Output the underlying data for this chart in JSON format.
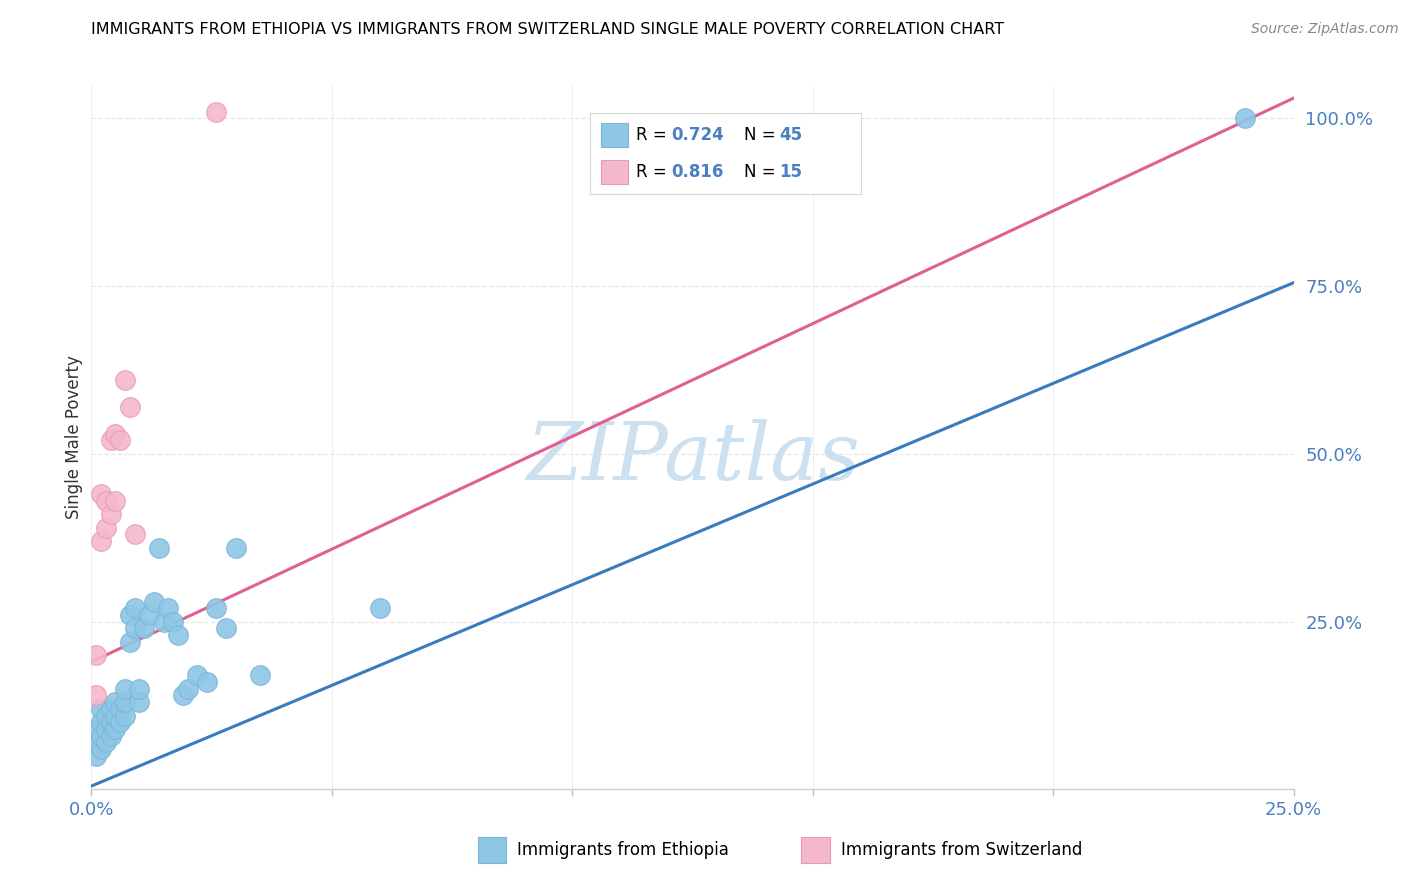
{
  "title": "IMMIGRANTS FROM ETHIOPIA VS IMMIGRANTS FROM SWITZERLAND SINGLE MALE POVERTY CORRELATION CHART",
  "source": "Source: ZipAtlas.com",
  "ylabel": "Single Male Poverty",
  "right_ytick_labels": [
    "100.0%",
    "75.0%",
    "50.0%",
    "25.0%"
  ],
  "right_ytick_positions": [
    1.0,
    0.75,
    0.5,
    0.25
  ],
  "xmin": 0.0,
  "xmax": 0.25,
  "ymin": 0.0,
  "ymax": 1.05,
  "ethiopia_color": "#8ec6e6",
  "ethiopia_edge_color": "#7ab5d8",
  "switzerland_color": "#f4b8cc",
  "switzerland_edge_color": "#e89ab5",
  "ethiopia_line_color": "#3a7bbf",
  "switzerland_line_color": "#e06090",
  "legend_r_ethiopia": "R = 0.724",
  "legend_n_ethiopia": "N = 45",
  "legend_r_switzerland": "R = 0.816",
  "legend_n_switzerland": "N = 15",
  "legend_label_ethiopia": "Immigrants from Ethiopia",
  "legend_label_switzerland": "Immigrants from Switzerland",
  "watermark": "ZIPatlas",
  "watermark_color": "#cce0f0",
  "grid_color": "#e8e8e8",
  "tick_color": "#4a7fc1",
  "ethiopia_x": [
    0.001,
    0.001,
    0.001,
    0.002,
    0.002,
    0.002,
    0.002,
    0.003,
    0.003,
    0.003,
    0.004,
    0.004,
    0.004,
    0.005,
    0.005,
    0.005,
    0.006,
    0.006,
    0.007,
    0.007,
    0.007,
    0.008,
    0.008,
    0.009,
    0.009,
    0.01,
    0.01,
    0.011,
    0.012,
    0.013,
    0.014,
    0.015,
    0.016,
    0.017,
    0.018,
    0.019,
    0.02,
    0.022,
    0.024,
    0.026,
    0.028,
    0.03,
    0.035,
    0.06,
    0.24
  ],
  "ethiopia_y": [
    0.05,
    0.07,
    0.09,
    0.06,
    0.08,
    0.1,
    0.12,
    0.07,
    0.09,
    0.11,
    0.08,
    0.1,
    0.12,
    0.09,
    0.11,
    0.13,
    0.1,
    0.12,
    0.11,
    0.13,
    0.15,
    0.22,
    0.26,
    0.24,
    0.27,
    0.13,
    0.15,
    0.24,
    0.26,
    0.28,
    0.36,
    0.25,
    0.27,
    0.25,
    0.23,
    0.14,
    0.15,
    0.17,
    0.16,
    0.27,
    0.24,
    0.36,
    0.17,
    0.27,
    1.0
  ],
  "switzerland_x": [
    0.001,
    0.001,
    0.002,
    0.002,
    0.003,
    0.003,
    0.004,
    0.004,
    0.005,
    0.005,
    0.006,
    0.007,
    0.008,
    0.009,
    0.026
  ],
  "switzerland_y": [
    0.14,
    0.2,
    0.37,
    0.44,
    0.39,
    0.43,
    0.41,
    0.52,
    0.43,
    0.53,
    0.52,
    0.61,
    0.57,
    0.38,
    1.01
  ],
  "eth_line_x0": 0.0,
  "eth_line_y0": 0.005,
  "eth_line_x1": 0.25,
  "eth_line_y1": 0.755,
  "swi_line_x0": 0.0,
  "swi_line_y0": 0.19,
  "swi_line_x1": 0.25,
  "swi_line_y1": 1.03
}
